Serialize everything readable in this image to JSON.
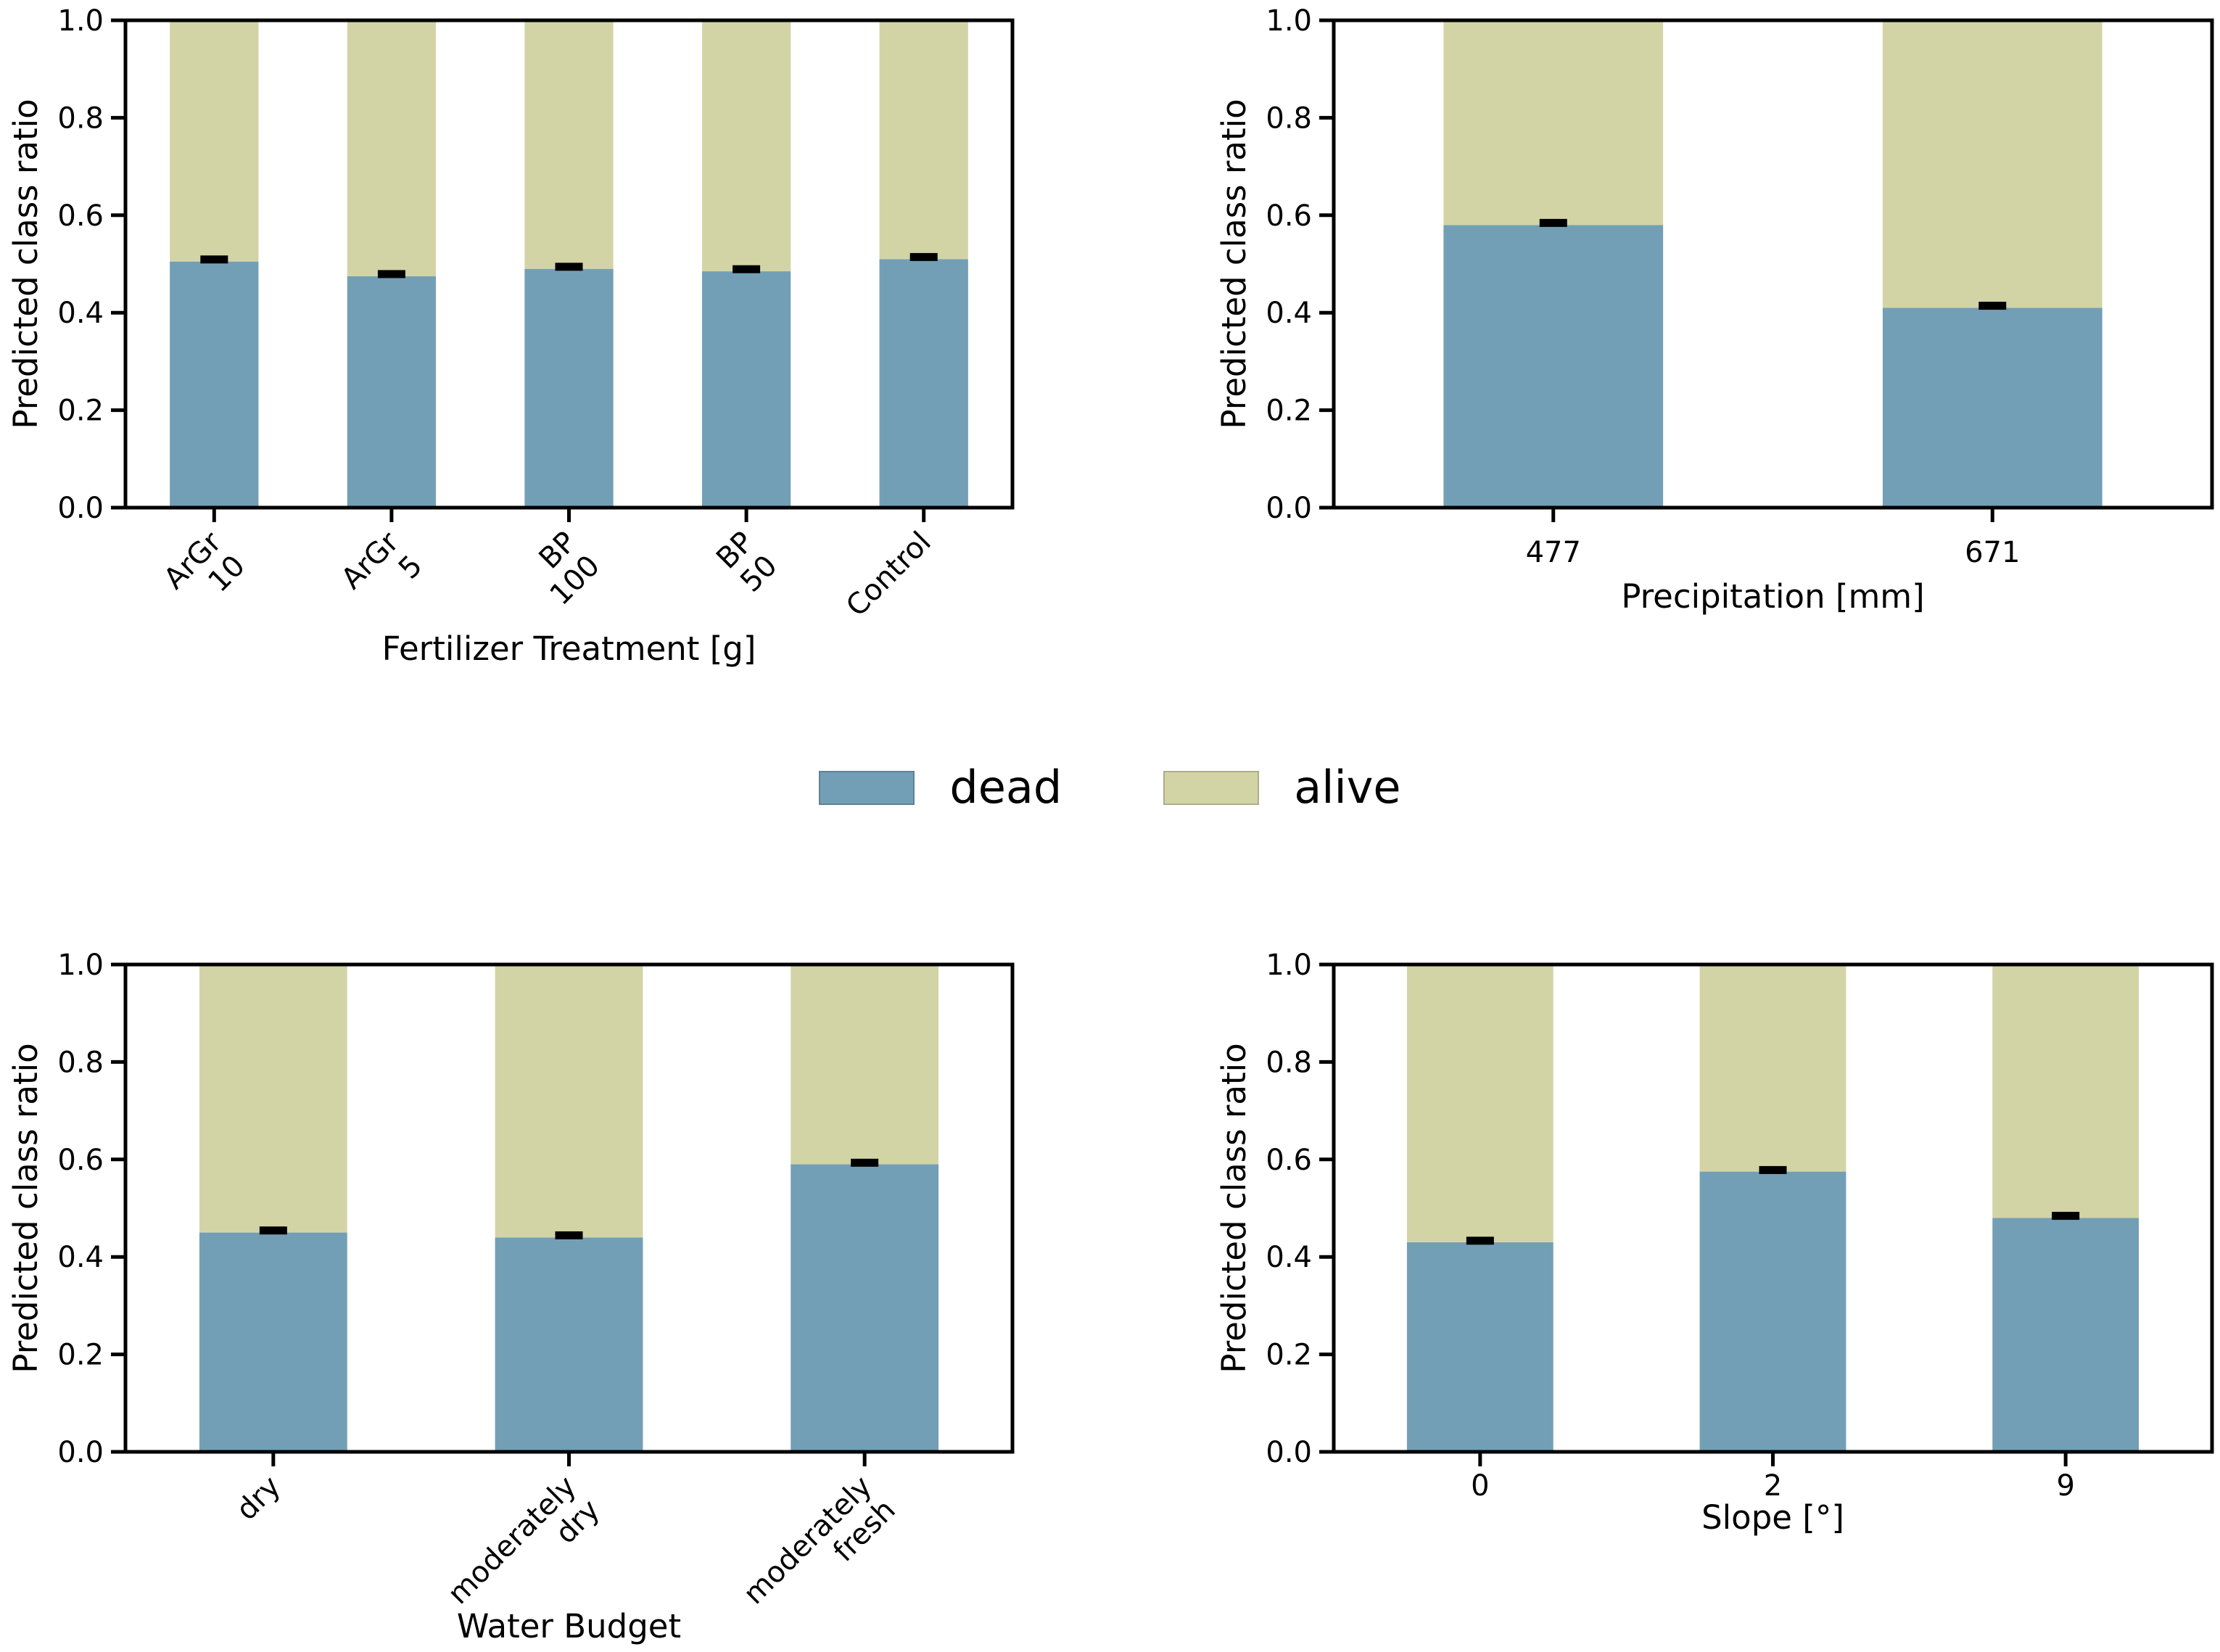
{
  "figure": {
    "background": "#ffffff"
  },
  "colors": {
    "dead": "#739fb6",
    "alive": "#d3d4a6",
    "axis": "#000000",
    "error": "#000000",
    "text": "#000000"
  },
  "legend": {
    "items": [
      {
        "label": "dead",
        "color": "#739fb6"
      },
      {
        "label": "alive",
        "color": "#d3d4a6"
      }
    ],
    "position": "center-between-rows"
  },
  "chart_data": [
    {
      "type": "bar",
      "stacked": true,
      "title": "",
      "xlabel": "Fertilizer Treatment [g]",
      "ylabel": "Predicted class ratio",
      "categories": [
        "ArGr\n10",
        "ArGr\n5",
        "BP\n100",
        "BP\n50",
        "Control"
      ],
      "xtick_rotation": 45,
      "series": [
        {
          "name": "dead",
          "values": [
            0.505,
            0.475,
            0.49,
            0.485,
            0.51
          ]
        },
        {
          "name": "alive",
          "values": [
            0.495,
            0.525,
            0.51,
            0.515,
            0.49
          ]
        }
      ],
      "errors": [
        0.005,
        0.005,
        0.005,
        0.005,
        0.005
      ],
      "ylim": [
        0.0,
        1.0
      ],
      "yticks": [
        "0.0",
        "0.2",
        "0.4",
        "0.6",
        "0.8",
        "1.0"
      ],
      "grid": false,
      "legend_position": "none"
    },
    {
      "type": "bar",
      "stacked": true,
      "title": "",
      "xlabel": "Precipitation [mm]",
      "ylabel": "Predicted class ratio",
      "categories": [
        "477",
        "671"
      ],
      "xtick_rotation": 0,
      "series": [
        {
          "name": "dead",
          "values": [
            0.58,
            0.41
          ]
        },
        {
          "name": "alive",
          "values": [
            0.42,
            0.59
          ]
        }
      ],
      "errors": [
        0.005,
        0.005
      ],
      "ylim": [
        0.0,
        1.0
      ],
      "yticks": [
        "0.0",
        "0.2",
        "0.4",
        "0.6",
        "0.8",
        "1.0"
      ],
      "grid": false,
      "legend_position": "none"
    },
    {
      "type": "bar",
      "stacked": true,
      "title": "",
      "xlabel": "Water Budget",
      "ylabel": "Predicted class ratio",
      "categories": [
        "dry",
        "moderately\ndry",
        "moderately\nfresh"
      ],
      "xtick_rotation": 45,
      "series": [
        {
          "name": "dead",
          "values": [
            0.45,
            0.44,
            0.59
          ]
        },
        {
          "name": "alive",
          "values": [
            0.55,
            0.56,
            0.41
          ]
        }
      ],
      "errors": [
        0.005,
        0.005,
        0.004
      ],
      "ylim": [
        0.0,
        1.0
      ],
      "yticks": [
        "0.0",
        "0.2",
        "0.4",
        "0.6",
        "0.8",
        "1.0"
      ],
      "grid": false,
      "legend_position": "none"
    },
    {
      "type": "bar",
      "stacked": true,
      "title": "",
      "xlabel": "Slope [°]",
      "ylabel": "Predicted class ratio",
      "categories": [
        "0",
        "2",
        "9"
      ],
      "xtick_rotation": 0,
      "series": [
        {
          "name": "dead",
          "values": [
            0.43,
            0.575,
            0.48
          ]
        },
        {
          "name": "alive",
          "values": [
            0.57,
            0.425,
            0.52
          ]
        }
      ],
      "errors": [
        0.004,
        0.004,
        0.005
      ],
      "ylim": [
        0.0,
        1.0
      ],
      "yticks": [
        "0.0",
        "0.2",
        "0.4",
        "0.6",
        "0.8",
        "1.0"
      ],
      "grid": false,
      "legend_position": "none"
    }
  ]
}
